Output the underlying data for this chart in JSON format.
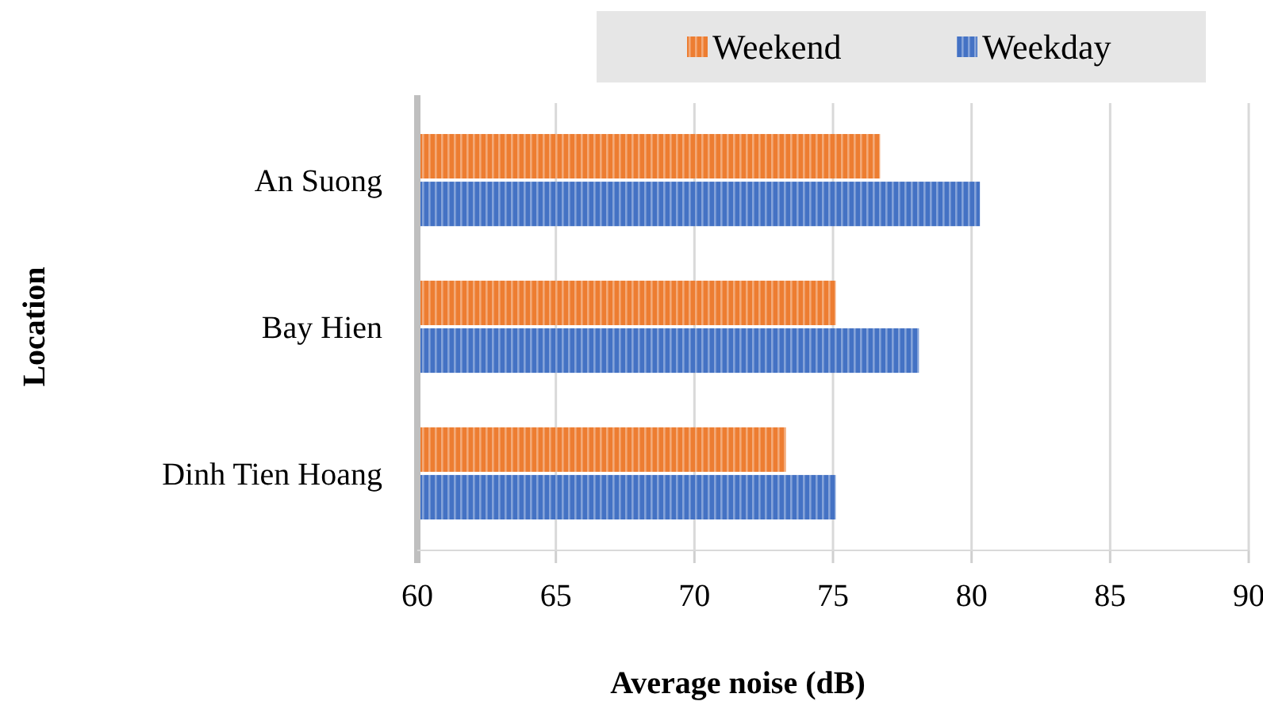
{
  "chart_data": {
    "type": "bar",
    "orientation": "horizontal",
    "xlabel": "Average noise (dB)",
    "ylabel": "Location",
    "categories": [
      "An Suong",
      "Bay Hien",
      "Dinh Tien Hoang"
    ],
    "series": [
      {
        "name": "Weekend",
        "color": "#ed7d31",
        "values": [
          76.7,
          75.1,
          73.3
        ]
      },
      {
        "name": "Weekday",
        "color": "#4472c4",
        "values": [
          80.3,
          78.1,
          75.1
        ]
      }
    ],
    "xlim": [
      60,
      90
    ],
    "xticks": [
      60,
      65,
      70,
      75,
      80,
      85,
      90
    ],
    "grid": "x",
    "legend": "top right"
  }
}
